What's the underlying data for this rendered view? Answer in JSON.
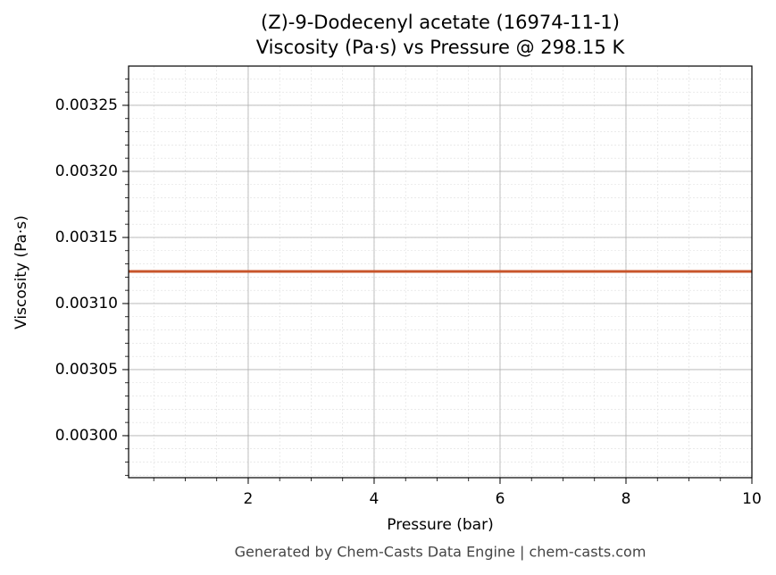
{
  "chart_data": {
    "type": "line",
    "title": "(Z)-9-Dodecenyl acetate (16974-11-1)",
    "subtitle": "Viscosity (Pa·s) vs Pressure @ 298.15 K",
    "x_label": "Pressure (bar)",
    "y_label": "Viscosity (Pa·s)",
    "footer": "Generated by Chem-Casts Data Engine | chem-casts.com",
    "x": [
      0.1,
      2,
      4,
      6,
      8,
      10
    ],
    "series": [
      {
        "name": "Viscosity",
        "color": "#c8552b",
        "values": [
          0.0031243,
          0.0031243,
          0.0031243,
          0.0031243,
          0.0031243,
          0.0031243
        ]
      }
    ],
    "xlim": [
      0.1,
      10
    ],
    "ylim": [
      0.0029682,
      0.0032797
    ],
    "xticks": [
      2,
      4,
      6,
      8,
      10
    ],
    "yticks": [
      {
        "value": 0.003,
        "label": "0.00300"
      },
      0.00305,
      {
        "value": 0.0031,
        "label": "0.00310"
      },
      0.00315,
      {
        "value": 0.0032,
        "label": "0.00320"
      },
      0.00325
    ],
    "grid": true,
    "minor_grid": true
  }
}
